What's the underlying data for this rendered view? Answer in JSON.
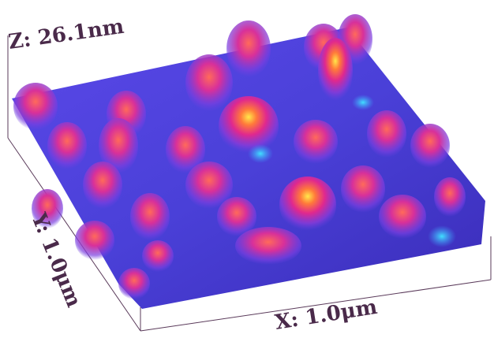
{
  "labels": {
    "z": "Z: 26.1nm",
    "y": "Y: 1.0μm",
    "x": "X: 1.0μm"
  }
}
